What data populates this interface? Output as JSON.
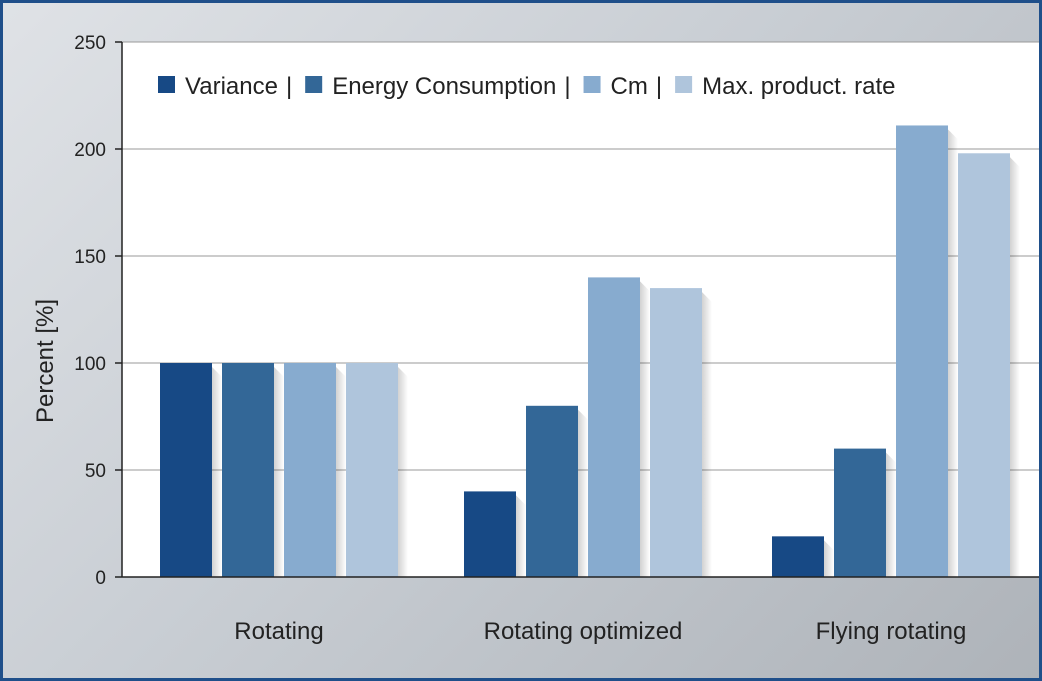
{
  "chart_data": {
    "type": "bar",
    "title": "",
    "xlabel": "",
    "ylabel": "Percent [%]",
    "ylim": [
      0,
      250
    ],
    "yticks": [
      0,
      50,
      100,
      150,
      200,
      250
    ],
    "grid": true,
    "legend_position": "top",
    "legend_separator": "|",
    "categories": [
      "Rotating",
      "Rotating optimized",
      "Flying rotating"
    ],
    "series": [
      {
        "name": "Variance",
        "color": "#174985",
        "values": [
          100,
          40,
          19
        ]
      },
      {
        "name": "Energy Consumption",
        "color": "#336797",
        "values": [
          100,
          80,
          60
        ]
      },
      {
        "name": "Cm",
        "color": "#87abcf",
        "values": [
          100,
          140,
          211
        ]
      },
      {
        "name": "Max. product. rate",
        "color": "#afc5dc",
        "values": [
          100,
          135,
          198
        ]
      }
    ]
  }
}
